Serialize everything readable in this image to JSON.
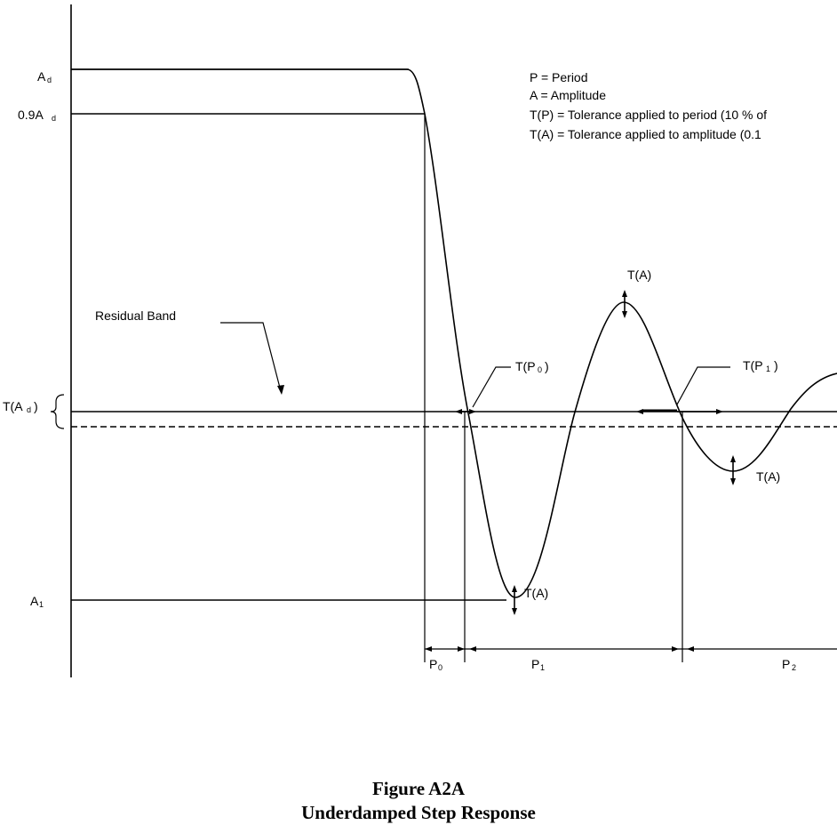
{
  "legend": {
    "period": "P = Period",
    "amplitude": "A = Amplitude",
    "tol_period": "T(P) = Tolerance applied to period (10 % of",
    "tol_amplitude": "T(A) = Tolerance applied to amplitude (0.1"
  },
  "labels": {
    "a_d": "A",
    "a_d_sub": "d",
    "a_09": "0.9A",
    "a_09_sub": "d",
    "t_ad": "T(A",
    "t_ad_sub": "d",
    "t_ad_close": ")",
    "a_1": "A",
    "a_1_sub": "1",
    "residual_band": "Residual Band",
    "t_p0": "T(P",
    "t_p0_sub": "0",
    "t_p0_close": ")",
    "t_p1": "T(P",
    "t_p1_sub": "1",
    "t_p1_close": ")",
    "t_a_peak": "T(A)",
    "t_a_trough1": "T(A)",
    "t_a_trough2": "T(A)",
    "p0": "P",
    "p0_sub": "0",
    "p1": "P",
    "p1_sub": "1",
    "p2": "P",
    "p2_sub": "2"
  },
  "caption": {
    "line1": "Figure A2A",
    "line2": "Underdamped Step Response"
  }
}
